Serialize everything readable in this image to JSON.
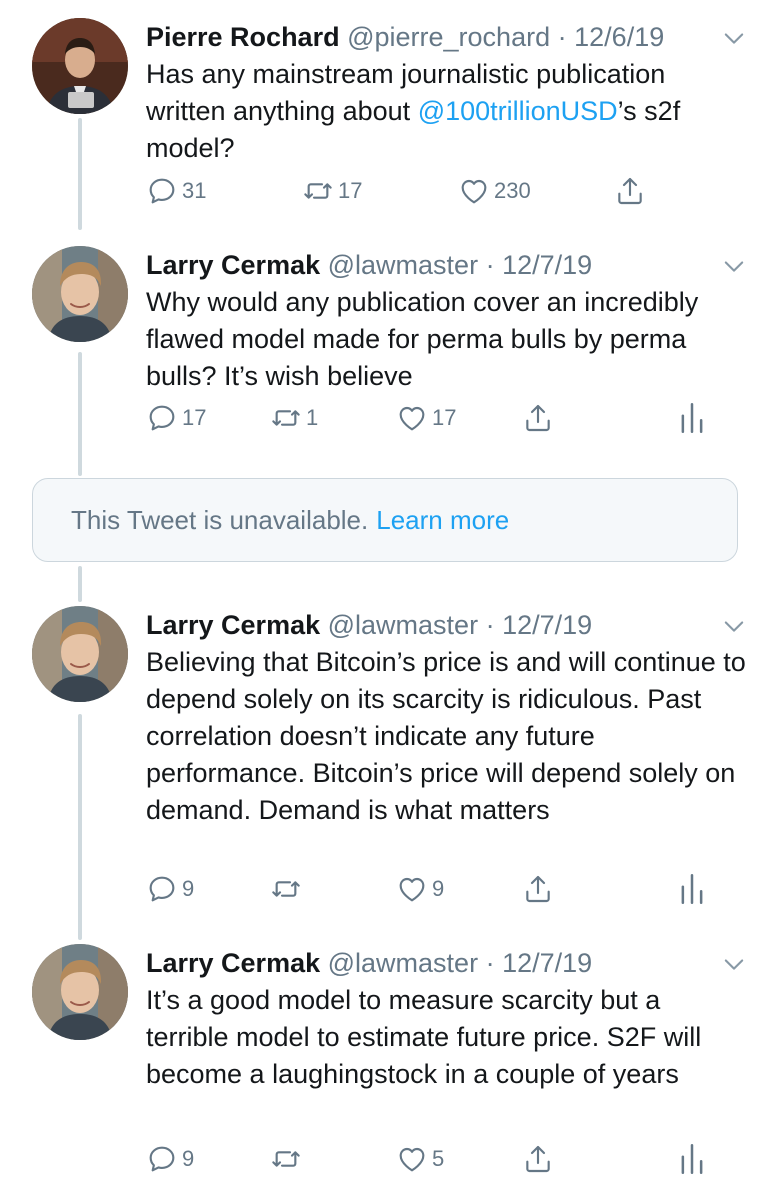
{
  "tweets": [
    {
      "name": "Pierre Rochard",
      "handle": "@pierre_rochard",
      "date": "12/6/19",
      "text_before": "Has any mainstream journalistic publication written anything about ",
      "mention": "@100trillionUSD",
      "text_after": "’s s2f model?",
      "replies": "31",
      "retweets": "17",
      "likes": "230"
    },
    {
      "name": "Larry Cermak",
      "handle": "@lawmaster",
      "date": "12/7/19",
      "text": "Why would any publication cover an incredibly flawed model made for perma bulls by perma bulls? It’s wish believe",
      "replies": "17",
      "retweets": "1",
      "likes": "17"
    },
    {
      "name": "Larry Cermak",
      "handle": "@lawmaster",
      "date": "12/7/19",
      "text": "Believing that Bitcoin’s price is and will continue to depend solely on its scarcity is ridiculous. Past correlation doesn’t indicate any future performance. Bitcoin’s price will depend solely on demand. Demand is what matters",
      "replies": "9",
      "retweets": "",
      "likes": "9"
    },
    {
      "name": "Larry Cermak",
      "handle": "@lawmaster",
      "date": "12/7/19",
      "text": "It’s a good model to measure scarcity but a terrible model to estimate future price. S2F will become a laughingstock in a couple of years",
      "replies": "9",
      "retweets": "",
      "likes": "5"
    }
  ],
  "unavailable": {
    "text": "This Tweet is unavailable.",
    "link": "Learn more"
  },
  "separator": "·",
  "colors": {
    "accent": "#1da1f2",
    "secondary_text": "#657786",
    "thread_line": "#cfd9de"
  }
}
